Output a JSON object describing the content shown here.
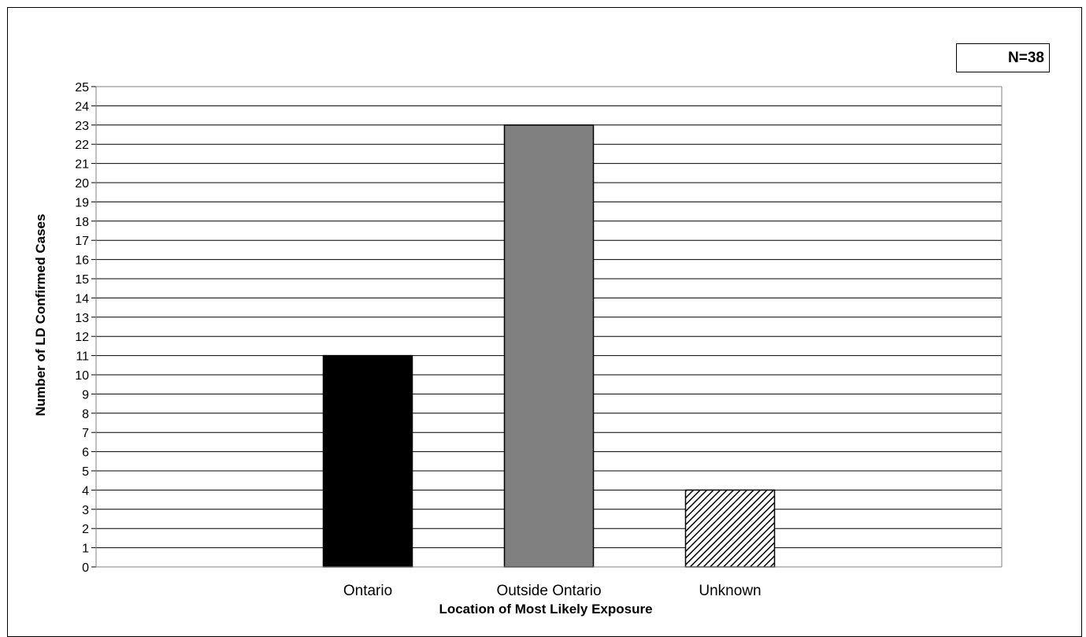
{
  "chart_data": {
    "type": "bar",
    "categories": [
      "Ontario",
      "Outside Ontario",
      "Unknown"
    ],
    "values": [
      11,
      23,
      4
    ],
    "title": "",
    "xlabel": "Location of Most Likely Exposure",
    "ylabel": "Number of LD Confirmed Cases",
    "ylim": [
      0,
      25
    ],
    "ytick_step": 1,
    "grid": true,
    "legend": "none",
    "annotation": "N=38",
    "bar_styles": [
      {
        "fill": "#000000",
        "pattern": "solid"
      },
      {
        "fill": "#808080",
        "pattern": "solid"
      },
      {
        "fill": "#ffffff",
        "pattern": "diagonal-hatch"
      }
    ]
  }
}
